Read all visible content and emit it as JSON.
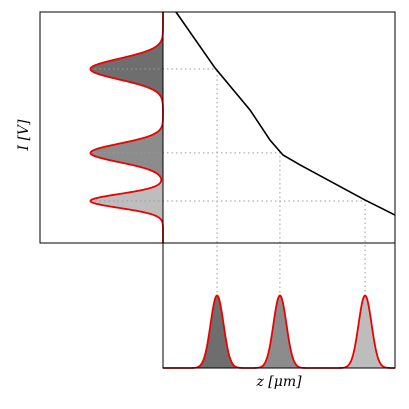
{
  "chart_data": [
    {
      "type": "line",
      "x": [
        0.056,
        0.224,
        0.375,
        0.461,
        0.517,
        0.591,
        0.871,
        1.0
      ],
      "values": [
        1.0,
        0.758,
        0.576,
        0.446,
        0.381,
        0.338,
        0.186,
        0.121
      ],
      "color": "#000000",
      "xlim": [
        0,
        1
      ],
      "ylim": [
        0,
        1
      ]
    },
    {
      "type": "peaks",
      "orientation": "horizontal",
      "ylabel": "I [V]",
      "edge_color": "#ee0000",
      "xlim": [
        0,
        1
      ],
      "series": [
        {
          "center": 0.753,
          "height": 0.59,
          "width": 0.045,
          "color": "#6e6e6e"
        },
        {
          "center": 0.39,
          "height": 0.59,
          "width": 0.04,
          "color": "#8c8c8c"
        },
        {
          "center": 0.182,
          "height": 0.59,
          "width": 0.03,
          "color": "#bdbdbd"
        }
      ]
    },
    {
      "type": "peaks",
      "orientation": "vertical",
      "xlabel": "z [μm]",
      "edge_color": "#ee0000",
      "ylim": [
        0,
        1
      ],
      "series": [
        {
          "center": 0.233,
          "height": 0.58,
          "width": 0.028,
          "color": "#6e6e6e"
        },
        {
          "center": 0.504,
          "height": 0.58,
          "width": 0.028,
          "color": "#8c8c8c"
        },
        {
          "center": 0.871,
          "height": 0.58,
          "width": 0.028,
          "color": "#bdbdbd"
        }
      ]
    }
  ]
}
